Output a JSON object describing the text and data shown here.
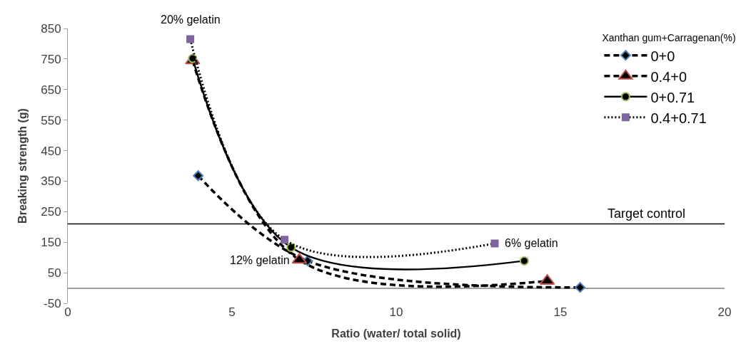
{
  "chart_data": {
    "type": "line",
    "xlabel": "Ratio (water/ total solid)",
    "ylabel": "Breaking strength (g)",
    "legend_title": "Xanthan gum+Carragenan(%)",
    "xlim": [
      0,
      20
    ],
    "xticks": [
      0,
      5,
      10,
      15,
      20
    ],
    "ylim": [
      -50,
      850
    ],
    "yticks": [
      -50,
      50,
      150,
      250,
      350,
      450,
      550,
      650,
      750,
      850
    ],
    "legend": "top right",
    "series": [
      {
        "name": "0+0",
        "color": "#4f81bd",
        "marker": "diamond",
        "line_style": "dashed",
        "x": [
          3.97,
          7.3,
          15.6
        ],
        "values": [
          368,
          89,
          2
        ]
      },
      {
        "name": "0.4+0",
        "color": "#c0504d",
        "marker": "triangle",
        "line_style": "dashed",
        "x": [
          3.8,
          7.05,
          14.6
        ],
        "values": [
          745,
          92,
          23
        ]
      },
      {
        "name": "0+0.71",
        "color": "#9bbb59",
        "marker": "circle",
        "line_style": "solid",
        "x": [
          3.8,
          6.8,
          13.9
        ],
        "values": [
          752,
          133,
          89
        ]
      },
      {
        "name": "0.4+0.71",
        "color": "#8064a2",
        "marker": "square",
        "line_style": "dotted",
        "x": [
          3.73,
          6.6,
          13.0
        ],
        "values": [
          815,
          158,
          146
        ]
      }
    ],
    "ref_lines": [
      {
        "axis": "y",
        "value": 210,
        "label": "Target control",
        "color": "#000000"
      }
    ],
    "annotations": [
      {
        "text": "20% gelatin",
        "x": 3.73,
        "y": 815
      },
      {
        "text": "12% gelatin",
        "x": 7.05,
        "y": 92
      },
      {
        "text": "6% gelatin",
        "x": 13.9,
        "y": 89
      }
    ]
  }
}
